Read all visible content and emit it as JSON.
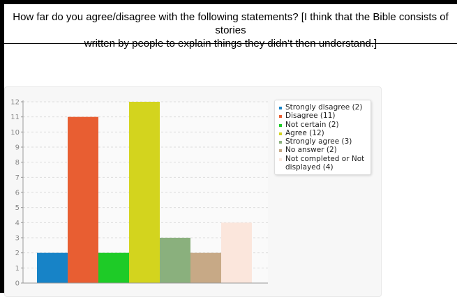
{
  "question": {
    "line1": "How far do you agree/disagree with the following statements? [I think that the Bible consists of stories",
    "line2": "written by people to explain things they didn’t then understand.]"
  },
  "chart_data": {
    "type": "bar",
    "categories": [
      "Strongly disagree",
      "Disagree",
      "Not certain",
      "Agree",
      "Strongly agree",
      "No answer",
      "Not completed or Not displayed"
    ],
    "values": [
      2,
      11,
      2,
      12,
      3,
      2,
      4
    ],
    "colors": [
      "#1783c7",
      "#e85e32",
      "#1ecb27",
      "#d3d41e",
      "#8ab07d",
      "#c7a986",
      "#fbe6dc"
    ],
    "ylim": [
      0,
      12
    ],
    "yticks": [
      "0",
      "1",
      "2",
      "3",
      "4",
      "5",
      "6",
      "7",
      "8",
      "9",
      "10",
      "11",
      "12"
    ],
    "grid": true,
    "legend_position": "right",
    "legend": [
      "Strongly disagree (2)",
      "Disagree (11)",
      "Not certain (2)",
      "Agree (12)",
      "Strongly agree (3)",
      "No answer (2)",
      "Not completed or Not displayed (4)"
    ]
  }
}
